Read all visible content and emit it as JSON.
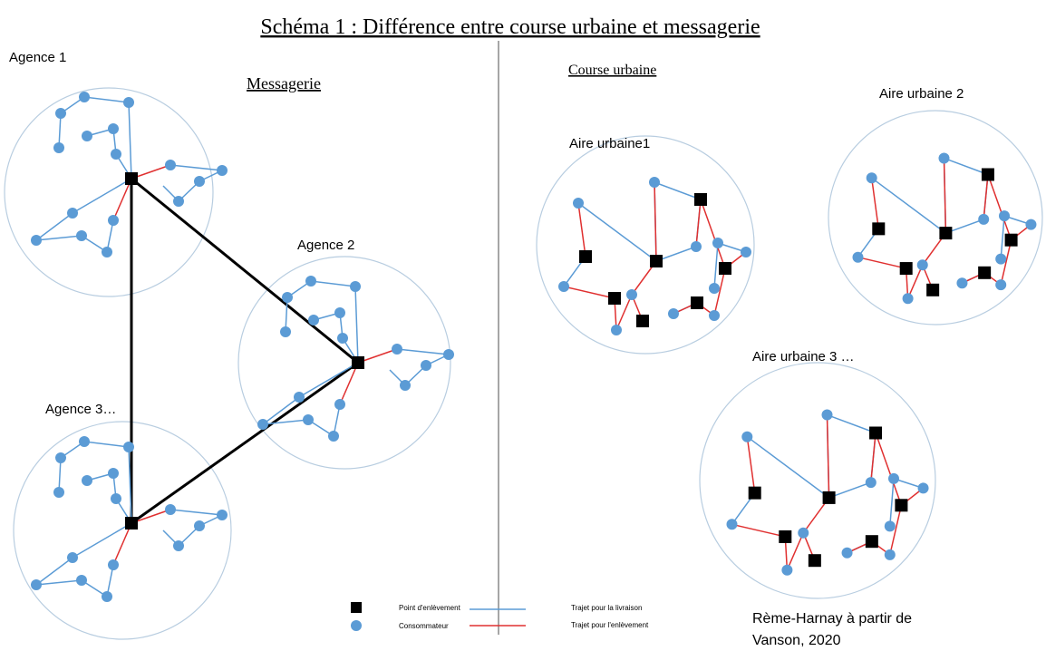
{
  "title": "Schéma 1 : Différence entre course urbaine et messagerie",
  "left": {
    "heading": "Messagerie",
    "clusters": [
      {
        "label": "Agence 1"
      },
      {
        "label": "Agence 2"
      },
      {
        "label": "Agence 3…"
      }
    ]
  },
  "right": {
    "heading": "Course urbaine",
    "clusters": [
      {
        "label": "Aire urbaine1"
      },
      {
        "label": "Aire urbaine 2"
      },
      {
        "label": "Aire urbaine 3 …"
      }
    ]
  },
  "legend": [
    {
      "label": "Point d'enlèvement"
    },
    {
      "label": "Consommateur"
    },
    {
      "label": "Trajet pour la livraison"
    },
    {
      "label": "Trajet pour l'enlèvement"
    }
  ],
  "credit": [
    "Rème-Harnay à partir de",
    "Vanson, 2020"
  ]
}
